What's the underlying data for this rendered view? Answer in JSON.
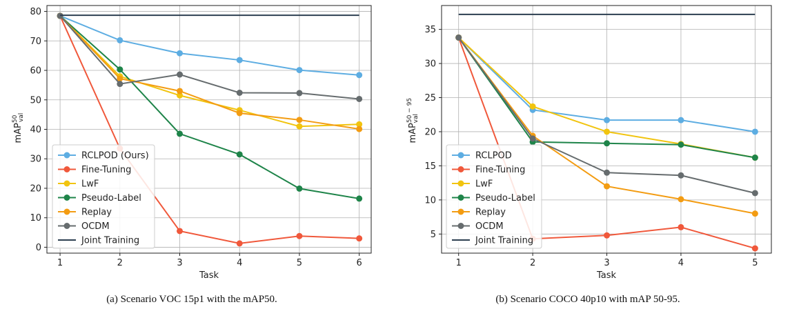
{
  "chart_data": [
    {
      "type": "line",
      "xlabel": "Task",
      "ylabel": "mAP",
      "ylabel_sup": "50",
      "ylabel_sub": "val",
      "x": [
        1,
        2,
        3,
        4,
        5,
        6
      ],
      "xlim": [
        0.78,
        6.2
      ],
      "ylim": [
        -2,
        82
      ],
      "yticks": [
        0,
        10,
        20,
        30,
        40,
        50,
        60,
        70,
        80
      ],
      "grid": true,
      "legend_position": "lower-left",
      "series": [
        {
          "name": "RCLPOD (Ours)",
          "color": "#5dade2",
          "values": [
            78.5,
            70.2,
            65.8,
            63.5,
            60.1,
            58.4
          ]
        },
        {
          "name": "Fine-Tuning",
          "color": "#f0583b",
          "values": [
            78.5,
            33.5,
            5.5,
            1.3,
            3.8,
            3.0
          ]
        },
        {
          "name": "LwF",
          "color": "#f1c40f",
          "values": [
            78.5,
            58.0,
            51.5,
            46.5,
            41.0,
            41.7
          ]
        },
        {
          "name": "Pseudo-Label",
          "color": "#1e8449",
          "values": [
            78.5,
            60.3,
            38.5,
            31.5,
            19.9,
            16.5
          ]
        },
        {
          "name": "Replay",
          "color": "#f39c12",
          "values": [
            78.5,
            57.2,
            53.0,
            45.5,
            43.2,
            40.1
          ]
        },
        {
          "name": "OCDM",
          "color": "#666c6e",
          "values": [
            78.5,
            55.4,
            58.6,
            52.4,
            52.3,
            50.3
          ]
        },
        {
          "name": "Joint Training",
          "color": "#2c3e50",
          "style": "line",
          "values": [
            78.7,
            78.7,
            78.7,
            78.7,
            78.7,
            78.7
          ]
        }
      ]
    },
    {
      "type": "line",
      "xlabel": "Task",
      "ylabel": "mAP",
      "ylabel_sup": "50 − 95",
      "ylabel_sub": "val",
      "x": [
        1,
        2,
        3,
        4,
        5
      ],
      "xlim": [
        0.77,
        5.22
      ],
      "ylim": [
        2.2,
        38.5
      ],
      "yticks": [
        5,
        10,
        15,
        20,
        25,
        30,
        35
      ],
      "grid": true,
      "legend_position": "lower-left",
      "series": [
        {
          "name": "RCLPOD",
          "color": "#5dade2",
          "values": [
            33.8,
            23.2,
            21.7,
            21.7,
            20.0
          ]
        },
        {
          "name": "Fine-Tuning",
          "color": "#f0583b",
          "values": [
            33.8,
            4.3,
            4.8,
            6.0,
            2.9
          ]
        },
        {
          "name": "LwF",
          "color": "#f1c40f",
          "values": [
            33.8,
            23.7,
            20.0,
            18.2,
            16.2
          ]
        },
        {
          "name": "Pseudo-Label",
          "color": "#1e8449",
          "values": [
            33.8,
            18.5,
            18.3,
            18.1,
            16.2
          ]
        },
        {
          "name": "Replay",
          "color": "#f39c12",
          "values": [
            33.8,
            19.4,
            12.0,
            10.1,
            8.0
          ]
        },
        {
          "name": "OCDM",
          "color": "#666c6e",
          "values": [
            33.8,
            19.0,
            14.0,
            13.6,
            11.0
          ]
        },
        {
          "name": "Joint Training",
          "color": "#2c3e50",
          "style": "line",
          "values": [
            37.2,
            37.2,
            37.2,
            37.2,
            37.2
          ]
        }
      ]
    }
  ],
  "captions": [
    "(a) Scenario VOC 15p1 with the mAP50.",
    "(b) Scenario COCO 40p10 with mAP 50-95."
  ]
}
